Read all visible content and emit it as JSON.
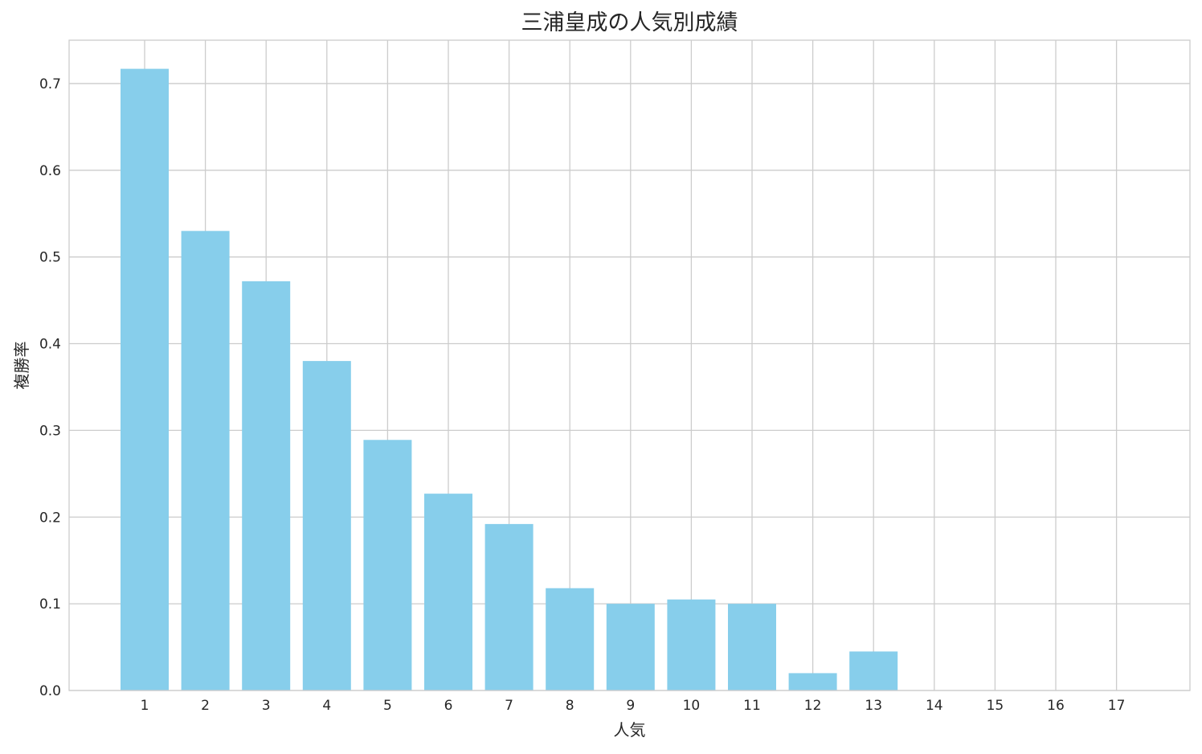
{
  "chart_data": {
    "type": "bar",
    "title": "三浦皇成の人気別成績",
    "xlabel": "人気",
    "ylabel": "複勝率",
    "categories": [
      "1",
      "2",
      "3",
      "4",
      "5",
      "6",
      "7",
      "8",
      "9",
      "10",
      "11",
      "12",
      "13",
      "14",
      "15",
      "16",
      "17"
    ],
    "values": [
      0.717,
      0.53,
      0.472,
      0.38,
      0.289,
      0.227,
      0.192,
      0.118,
      0.1,
      0.105,
      0.1,
      0.02,
      0.045,
      0,
      0,
      0,
      0
    ],
    "ylim": [
      0,
      0.75
    ],
    "yticks": [
      0.0,
      0.1,
      0.2,
      0.3,
      0.4,
      0.5,
      0.6,
      0.7
    ],
    "ytick_labels": [
      "0.0",
      "0.1",
      "0.2",
      "0.3",
      "0.4",
      "0.5",
      "0.6",
      "0.7"
    ],
    "grid": true,
    "colors": {
      "bar": "#87ceeb",
      "grid": "#cccccc",
      "text": "#262626"
    }
  }
}
